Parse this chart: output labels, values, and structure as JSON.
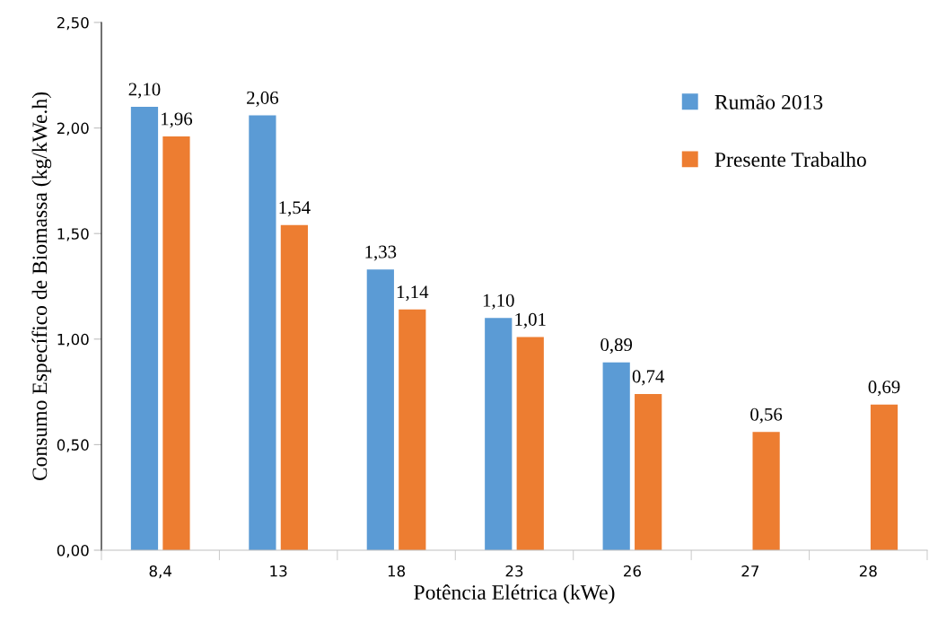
{
  "chart_data": {
    "type": "bar",
    "xlabel": "Potência Elétrica (kWe)",
    "ylabel": "Consumo Específico de Biomassa (kg/kWe.h)",
    "categories": [
      "8,4",
      "13",
      "18",
      "23",
      "26",
      "27",
      "28"
    ],
    "series": [
      {
        "name": "Rumão 2013",
        "color": "#5b9bd5",
        "values": [
          2.1,
          2.06,
          1.33,
          1.1,
          0.89,
          null,
          null
        ],
        "value_labels": [
          "2,10",
          "2,06",
          "1,33",
          "1,10",
          "0,89",
          null,
          null
        ]
      },
      {
        "name": "Presente Trabalho",
        "color": "#ed7d31",
        "values": [
          1.96,
          1.54,
          1.14,
          1.01,
          0.74,
          0.56,
          0.69
        ],
        "value_labels": [
          "1,96",
          "1,54",
          "1,14",
          "1,01",
          "0,74",
          "0,56",
          "0,69"
        ]
      }
    ],
    "ylim": [
      0,
      2.5
    ],
    "yticks": [
      {
        "value": 0,
        "label": "0,00"
      },
      {
        "value": 0.5,
        "label": "0,50"
      },
      {
        "value": 1,
        "label": "1,00"
      },
      {
        "value": 1.5,
        "label": "1,50"
      },
      {
        "value": 2,
        "label": "2,00"
      },
      {
        "value": 2.5,
        "label": "2,50"
      }
    ],
    "grid": false,
    "legend": "top right"
  }
}
